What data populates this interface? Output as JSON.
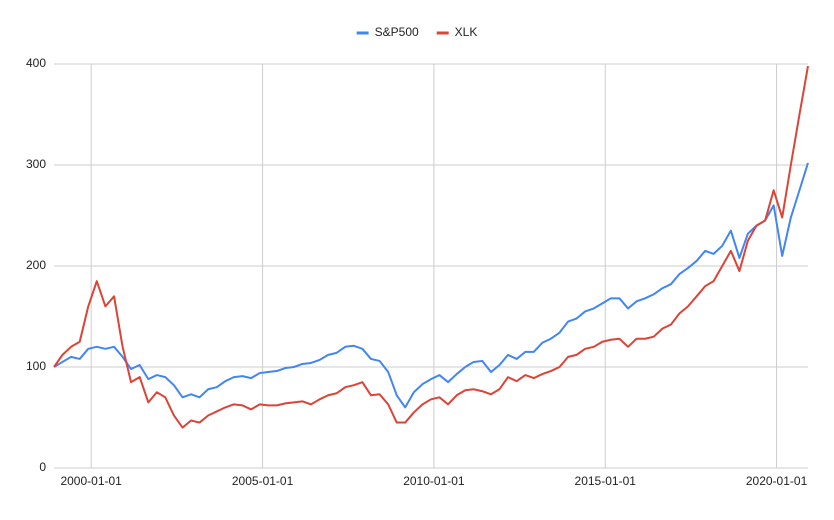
{
  "chart_data": {
    "type": "line",
    "x": [
      "1998-12-01",
      "1999-03-01",
      "1999-06-01",
      "1999-09-01",
      "1999-12-01",
      "2000-03-01",
      "2000-06-01",
      "2000-09-01",
      "2000-12-01",
      "2001-03-01",
      "2001-06-01",
      "2001-09-01",
      "2001-12-01",
      "2002-03-01",
      "2002-06-01",
      "2002-09-01",
      "2002-12-01",
      "2003-03-01",
      "2003-06-01",
      "2003-09-01",
      "2003-12-01",
      "2004-03-01",
      "2004-06-01",
      "2004-09-01",
      "2004-12-01",
      "2005-03-01",
      "2005-06-01",
      "2005-09-01",
      "2005-12-01",
      "2006-03-01",
      "2006-06-01",
      "2006-09-01",
      "2006-12-01",
      "2007-03-01",
      "2007-06-01",
      "2007-09-01",
      "2007-12-01",
      "2008-03-01",
      "2008-06-01",
      "2008-09-01",
      "2008-12-01",
      "2009-03-01",
      "2009-06-01",
      "2009-09-01",
      "2009-12-01",
      "2010-03-01",
      "2010-06-01",
      "2010-09-01",
      "2010-12-01",
      "2011-03-01",
      "2011-06-01",
      "2011-09-01",
      "2011-12-01",
      "2012-03-01",
      "2012-06-01",
      "2012-09-01",
      "2012-12-01",
      "2013-03-01",
      "2013-06-01",
      "2013-09-01",
      "2013-12-01",
      "2014-03-01",
      "2014-06-01",
      "2014-09-01",
      "2014-12-01",
      "2015-03-01",
      "2015-06-01",
      "2015-09-01",
      "2015-12-01",
      "2016-03-01",
      "2016-06-01",
      "2016-09-01",
      "2016-12-01",
      "2017-03-01",
      "2017-06-01",
      "2017-09-01",
      "2017-12-01",
      "2018-03-01",
      "2018-06-01",
      "2018-09-01",
      "2018-12-01",
      "2019-03-01",
      "2019-06-01",
      "2019-09-01",
      "2019-12-01",
      "2020-03-01",
      "2020-06-01",
      "2020-09-01",
      "2020-12-01"
    ],
    "series": [
      {
        "name": "S&P500",
        "color": "#4285f4",
        "values": [
          100,
          105,
          110,
          108,
          118,
          120,
          118,
          120,
          110,
          98,
          102,
          88,
          92,
          90,
          82,
          70,
          73,
          70,
          78,
          80,
          86,
          90,
          91,
          89,
          94,
          95,
          96,
          99,
          100,
          103,
          104,
          107,
          112,
          114,
          120,
          121,
          118,
          108,
          106,
          95,
          72,
          60,
          75,
          83,
          88,
          92,
          85,
          93,
          100,
          105,
          106,
          95,
          102,
          112,
          108,
          115,
          115,
          124,
          128,
          134,
          145,
          148,
          155,
          158,
          163,
          168,
          168,
          158,
          165,
          168,
          172,
          178,
          182,
          192,
          198,
          205,
          215,
          212,
          220,
          235,
          208,
          232,
          240,
          245,
          260,
          210,
          248,
          275,
          302
        ]
      },
      {
        "name": "XLK",
        "color": "#db4437",
        "values": [
          100,
          112,
          120,
          125,
          160,
          185,
          160,
          170,
          120,
          85,
          90,
          65,
          75,
          70,
          52,
          40,
          47,
          45,
          52,
          56,
          60,
          63,
          62,
          58,
          63,
          62,
          62,
          64,
          65,
          66,
          63,
          68,
          72,
          74,
          80,
          82,
          85,
          72,
          73,
          63,
          45,
          45,
          55,
          63,
          68,
          70,
          63,
          72,
          77,
          78,
          76,
          73,
          78,
          90,
          86,
          92,
          89,
          93,
          96,
          100,
          110,
          112,
          118,
          120,
          125,
          127,
          128,
          120,
          128,
          128,
          130,
          138,
          142,
          153,
          160,
          170,
          180,
          185,
          200,
          215,
          195,
          225,
          240,
          245,
          275,
          248,
          300,
          350,
          398
        ]
      }
    ],
    "xlim": [
      "1998-12-01",
      "2020-12-01"
    ],
    "xticks": [
      "2000-01-01",
      "2005-01-01",
      "2010-01-01",
      "2015-01-01",
      "2020-01-01"
    ],
    "ylim": [
      0,
      400
    ],
    "yticks": [
      0,
      100,
      200,
      300,
      400
    ],
    "grid": true,
    "legend": "top"
  }
}
